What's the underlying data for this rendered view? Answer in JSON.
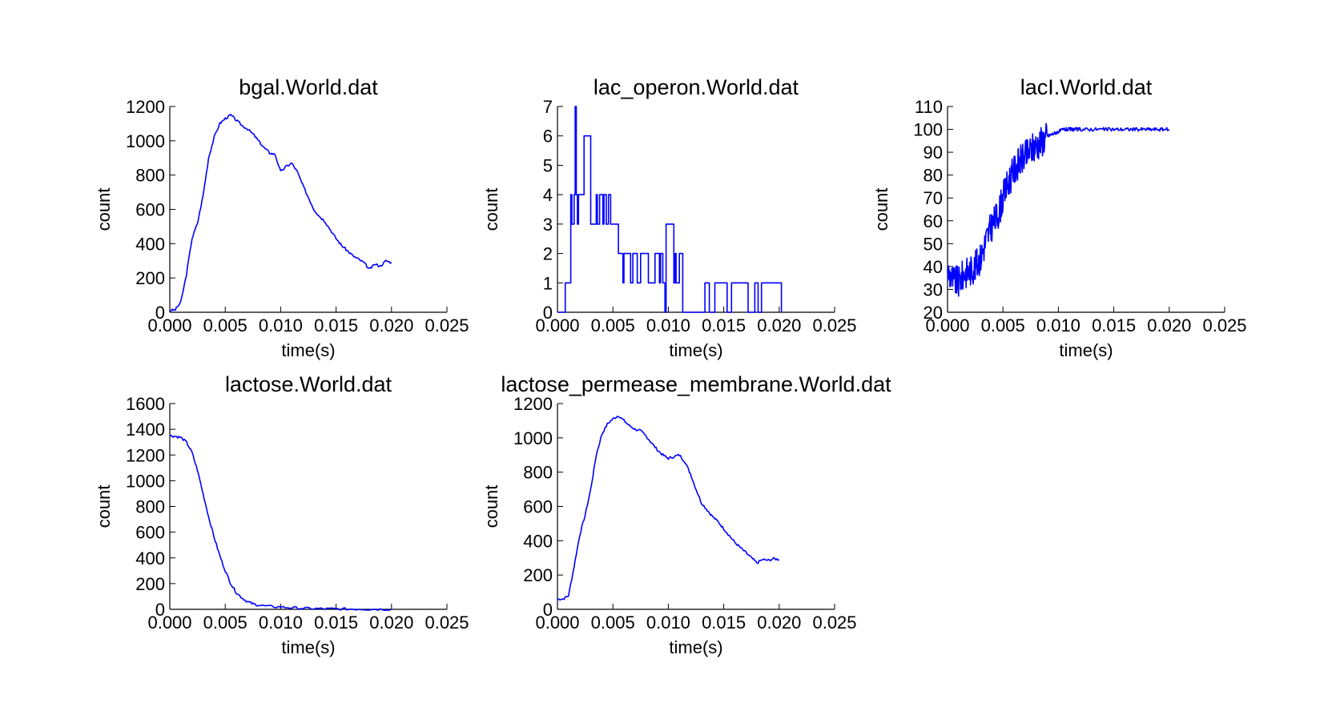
{
  "figure": {
    "background": "#ffffff",
    "line_color": "#0000ff"
  },
  "chart_data": [
    {
      "type": "line",
      "title": "bgal.World.dat",
      "xlabel": "time(s)",
      "ylabel": "count",
      "xlim": [
        0,
        0.025
      ],
      "ylim": [
        0,
        1200
      ],
      "xticks": [
        "0.000",
        "0.005",
        "0.010",
        "0.015",
        "0.020",
        "0.025"
      ],
      "yticks": [
        "0",
        "200",
        "400",
        "600",
        "800",
        "1000",
        "1200"
      ],
      "grid": false,
      "series": [
        {
          "color": "#0000ff",
          "x": [
            0,
            0.0005,
            0.001,
            0.0015,
            0.002,
            0.0025,
            0.003,
            0.0035,
            0.004,
            0.0045,
            0.005,
            0.0055,
            0.006,
            0.0065,
            0.007,
            0.0075,
            0.008,
            0.0085,
            0.009,
            0.0095,
            0.01,
            0.0105,
            0.011,
            0.0115,
            0.012,
            0.0125,
            0.013,
            0.0135,
            0.014,
            0.0145,
            0.015,
            0.0155,
            0.016,
            0.0165,
            0.017,
            0.0175,
            0.018,
            0.0185,
            0.019,
            0.0195,
            0.02
          ],
          "y": [
            10,
            15,
            60,
            220,
            430,
            520,
            680,
            900,
            1020,
            1100,
            1130,
            1150,
            1120,
            1090,
            1070,
            1040,
            1000,
            960,
            930,
            920,
            820,
            850,
            870,
            820,
            740,
            670,
            600,
            560,
            530,
            480,
            430,
            390,
            360,
            330,
            310,
            290,
            250,
            280,
            270,
            300,
            290
          ]
        }
      ]
    },
    {
      "type": "line",
      "title": "lac_operon.World.dat",
      "xlabel": "time(s)",
      "ylabel": "count",
      "xlim": [
        0,
        0.025
      ],
      "ylim": [
        0,
        7
      ],
      "xticks": [
        "0.000",
        "0.005",
        "0.010",
        "0.015",
        "0.020",
        "0.025"
      ],
      "yticks": [
        "0",
        "1",
        "2",
        "3",
        "4",
        "5",
        "6",
        "7"
      ],
      "grid": false,
      "step": true,
      "series": [
        {
          "color": "#0000ff",
          "x": [
            0,
            0.0007,
            0.0012,
            0.0013,
            0.0015,
            0.0016,
            0.0017,
            0.0018,
            0.0019,
            0.002,
            0.0022,
            0.0024,
            0.0026,
            0.003,
            0.0035,
            0.0036,
            0.0038,
            0.0041,
            0.0042,
            0.0044,
            0.0046,
            0.0048,
            0.0049,
            0.0051,
            0.0055,
            0.0059,
            0.006,
            0.0062,
            0.0066,
            0.0068,
            0.0072,
            0.0075,
            0.0077,
            0.0082,
            0.0084,
            0.0088,
            0.0092,
            0.0093,
            0.0095,
            0.0097,
            0.0098,
            0.0105,
            0.0106,
            0.0107,
            0.011,
            0.0113,
            0.0115,
            0.0125,
            0.0133,
            0.0137,
            0.0142,
            0.0153,
            0.0157,
            0.0172,
            0.0178,
            0.0181,
            0.0184,
            0.0188,
            0.0202
          ],
          "y": [
            0,
            1,
            4,
            3,
            4,
            7,
            4,
            3,
            4,
            4,
            4,
            6,
            6,
            3,
            4,
            3,
            4,
            3,
            4,
            3,
            4,
            3,
            3,
            3,
            2,
            1,
            2,
            2,
            1,
            2,
            1,
            2,
            2,
            1,
            1,
            2,
            1,
            2,
            1,
            0,
            3,
            1,
            2,
            1,
            2,
            0,
            0,
            0,
            1,
            0,
            1,
            0,
            1,
            0,
            1,
            0,
            1,
            1,
            0
          ]
        }
      ]
    },
    {
      "type": "line",
      "title": "lacI.World.dat",
      "xlabel": "time(s)",
      "ylabel": "count",
      "xlim": [
        0,
        0.025
      ],
      "ylim": [
        20,
        110
      ],
      "xticks": [
        "0.000",
        "0.005",
        "0.010",
        "0.015",
        "0.020",
        "0.025"
      ],
      "yticks": [
        "20",
        "30",
        "40",
        "50",
        "60",
        "70",
        "80",
        "90",
        "100",
        "110"
      ],
      "grid": false,
      "series": [
        {
          "color": "#0000ff",
          "noisy": true,
          "x": [
            0,
            0.0005,
            0.001,
            0.0015,
            0.002,
            0.0025,
            0.003,
            0.0035,
            0.004,
            0.0045,
            0.005,
            0.0055,
            0.006,
            0.0065,
            0.007,
            0.0075,
            0.008,
            0.0085,
            0.009,
            0.0095,
            0.01,
            0.0105,
            0.011,
            0.0115,
            0.012,
            0.013,
            0.014,
            0.015,
            0.016,
            0.017,
            0.018,
            0.019,
            0.02
          ],
          "y": [
            38,
            34,
            33,
            37,
            38,
            40,
            44,
            52,
            58,
            62,
            70,
            77,
            82,
            86,
            88,
            91,
            93,
            95,
            97,
            98,
            99,
            100,
            100,
            100,
            100,
            100,
            100,
            100,
            100,
            100,
            100,
            100,
            100
          ]
        }
      ]
    },
    {
      "type": "line",
      "title": "lactose.World.dat",
      "xlabel": "time(s)",
      "ylabel": "count",
      "xlim": [
        0,
        0.025
      ],
      "ylim": [
        0,
        1600
      ],
      "xticks": [
        "0.000",
        "0.005",
        "0.010",
        "0.015",
        "0.020",
        "0.025"
      ],
      "yticks": [
        "0",
        "200",
        "400",
        "600",
        "800",
        "1000",
        "1200",
        "1400",
        "1600"
      ],
      "grid": false,
      "series": [
        {
          "color": "#0000ff",
          "x": [
            0,
            0.0005,
            0.001,
            0.0015,
            0.002,
            0.0025,
            0.003,
            0.0035,
            0.004,
            0.0045,
            0.005,
            0.0055,
            0.006,
            0.0065,
            0.007,
            0.0075,
            0.008,
            0.009,
            0.01,
            0.011,
            0.012,
            0.013,
            0.014,
            0.015,
            0.016,
            0.017,
            0.018,
            0.019,
            0.02
          ],
          "y": [
            1350,
            1345,
            1335,
            1300,
            1220,
            1080,
            900,
            720,
            560,
            420,
            300,
            200,
            130,
            90,
            60,
            42,
            32,
            22,
            18,
            12,
            8,
            5,
            4,
            3,
            2,
            2,
            1,
            1,
            1
          ]
        }
      ]
    },
    {
      "type": "line",
      "title": "lactose_permease_membrane.World.dat",
      "xlabel": "time(s)",
      "ylabel": "count",
      "xlim": [
        0,
        0.025
      ],
      "ylim": [
        0,
        1200
      ],
      "xticks": [
        "0.000",
        "0.005",
        "0.010",
        "0.015",
        "0.020",
        "0.025"
      ],
      "yticks": [
        "0",
        "200",
        "400",
        "600",
        "800",
        "1000",
        "1200"
      ],
      "grid": false,
      "series": [
        {
          "color": "#0000ff",
          "x": [
            0,
            0.0005,
            0.001,
            0.0015,
            0.002,
            0.0025,
            0.003,
            0.0035,
            0.004,
            0.0045,
            0.005,
            0.0055,
            0.006,
            0.0065,
            0.007,
            0.0075,
            0.008,
            0.0085,
            0.009,
            0.0095,
            0.01,
            0.0105,
            0.011,
            0.0115,
            0.012,
            0.0125,
            0.013,
            0.0135,
            0.014,
            0.0145,
            0.015,
            0.0155,
            0.016,
            0.0165,
            0.017,
            0.0175,
            0.018,
            0.0185,
            0.019,
            0.0195,
            0.02
          ],
          "y": [
            60,
            60,
            80,
            250,
            430,
            550,
            700,
            900,
            1020,
            1080,
            1110,
            1130,
            1100,
            1070,
            1050,
            1040,
            1010,
            970,
            930,
            900,
            880,
            890,
            900,
            860,
            790,
            700,
            620,
            580,
            540,
            510,
            470,
            430,
            390,
            360,
            330,
            300,
            270,
            290,
            285,
            295,
            290
          ]
        }
      ]
    }
  ]
}
